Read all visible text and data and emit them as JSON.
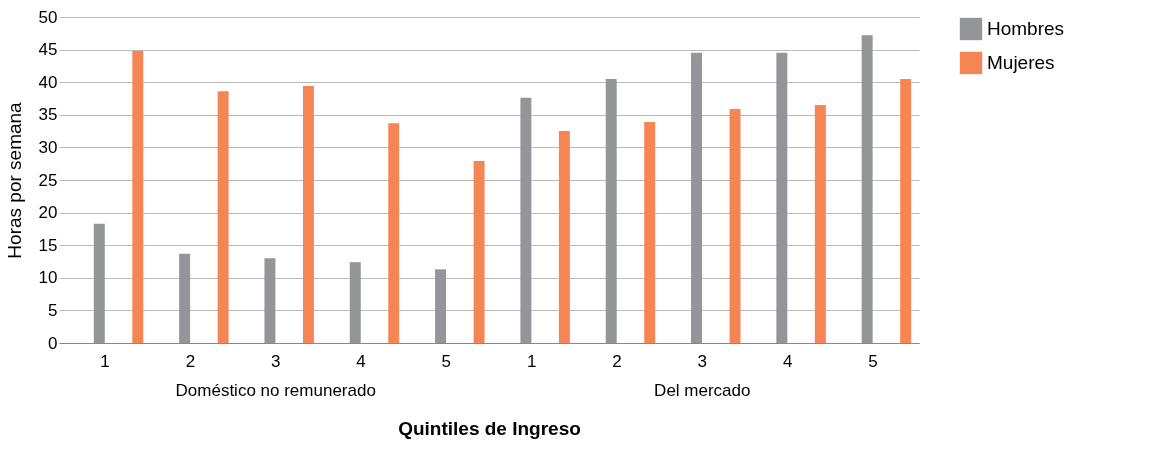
{
  "chart_data": {
    "type": "bar",
    "xlabel": "Quintiles de Ingreso",
    "ylabel": "Horas por semana",
    "categories": [
      "1",
      "2",
      "3",
      "4",
      "5",
      "1",
      "2",
      "3",
      "4",
      "5"
    ],
    "series": [
      {
        "name": "Hombres",
        "color": "#939598",
        "values": [
          18.3,
          13.7,
          13.0,
          12.4,
          11.3,
          37.6,
          40.5,
          44.5,
          44.5,
          47.2
        ]
      },
      {
        "name": "Mujeres",
        "color": "#f58653",
        "values": [
          44.8,
          38.6,
          39.4,
          33.7,
          27.9,
          32.5,
          33.9,
          35.9,
          36.5,
          40.5
        ]
      }
    ],
    "annotations": [
      "Doméstico no remunerado",
      "Del mercado"
    ],
    "ylim": [
      0,
      50
    ],
    "yticks": [
      0,
      5,
      10,
      15,
      20,
      25,
      30,
      35,
      40,
      45,
      50
    ],
    "grid": "y",
    "legend": "right"
  }
}
